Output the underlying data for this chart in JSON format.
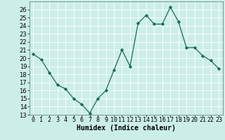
{
  "x": [
    0,
    1,
    2,
    3,
    4,
    5,
    6,
    7,
    8,
    9,
    10,
    11,
    12,
    13,
    14,
    15,
    16,
    17,
    18,
    19,
    20,
    21,
    22,
    23
  ],
  "y": [
    20.5,
    19.8,
    18.2,
    16.7,
    16.2,
    15.0,
    14.3,
    13.2,
    15.0,
    16.0,
    18.5,
    21.0,
    19.0,
    24.3,
    25.3,
    24.2,
    24.2,
    26.3,
    24.5,
    21.3,
    21.3,
    20.3,
    19.7,
    18.7
  ],
  "xlabel": "Humidex (Indice chaleur)",
  "ylim": [
    13,
    27
  ],
  "xlim": [
    -0.5,
    23.5
  ],
  "yticks": [
    13,
    14,
    15,
    16,
    17,
    18,
    19,
    20,
    21,
    22,
    23,
    24,
    25,
    26
  ],
  "xtick_labels": [
    "0",
    "1",
    "2",
    "3",
    "4",
    "5",
    "6",
    "7",
    "8",
    "9",
    "10",
    "11",
    "12",
    "13",
    "14",
    "15",
    "16",
    "17",
    "18",
    "19",
    "20",
    "21",
    "22",
    "23"
  ],
  "line_color": "#1a6b55",
  "marker": "D",
  "marker_size": 2.2,
  "bg_color": "#cceee8",
  "grid_color": "#ffffff",
  "axis_fontsize": 7,
  "tick_fontsize": 6.0
}
